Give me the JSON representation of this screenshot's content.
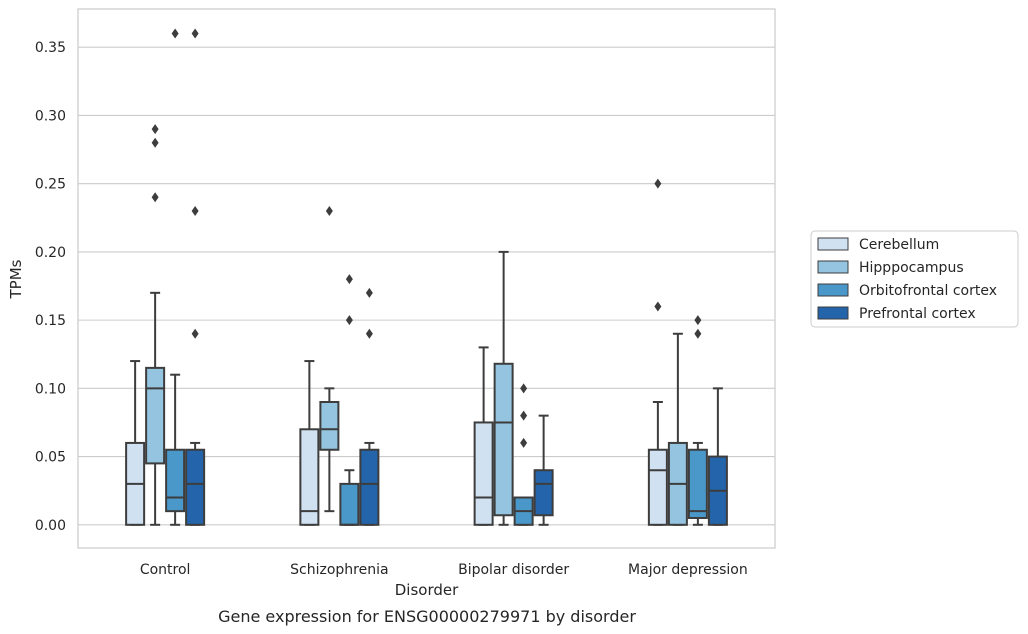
{
  "chart_data": {
    "type": "box",
    "caption": "Gene expression for ENSG00000279971 by disorder",
    "xlabel": "Disorder",
    "ylabel": "TPMs",
    "ylim": [
      -0.017,
      0.378
    ],
    "yticks": [
      "0.00",
      "0.05",
      "0.10",
      "0.15",
      "0.20",
      "0.25",
      "0.30",
      "0.35"
    ],
    "grid": true,
    "legend_position": "outside-right",
    "categories": [
      "Control",
      "Schizophrenia",
      "Bipolar disorder",
      "Major depression"
    ],
    "series": [
      {
        "name": "Cerebellum",
        "color": "#d0e1f2",
        "boxes": [
          {
            "whislo": 0.0,
            "q1": 0.0,
            "med": 0.03,
            "q3": 0.06,
            "whishi": 0.12,
            "fliers": []
          },
          {
            "whislo": 0.0,
            "q1": 0.0,
            "med": 0.01,
            "q3": 0.07,
            "whishi": 0.12,
            "fliers": []
          },
          {
            "whislo": 0.0,
            "q1": 0.0,
            "med": 0.02,
            "q3": 0.075,
            "whishi": 0.13,
            "fliers": []
          },
          {
            "whislo": 0.0,
            "q1": 0.0,
            "med": 0.04,
            "q3": 0.055,
            "whishi": 0.09,
            "fliers": [
              0.16,
              0.25
            ]
          }
        ]
      },
      {
        "name": "Hipppocampus",
        "color": "#94c4df",
        "boxes": [
          {
            "whislo": 0.0,
            "q1": 0.045,
            "med": 0.1,
            "q3": 0.115,
            "whishi": 0.17,
            "fliers": [
              0.24,
              0.28,
              0.29
            ]
          },
          {
            "whislo": 0.01,
            "q1": 0.055,
            "med": 0.07,
            "q3": 0.09,
            "whishi": 0.1,
            "fliers": [
              0.23
            ]
          },
          {
            "whislo": 0.0,
            "q1": 0.007,
            "med": 0.075,
            "q3": 0.118,
            "whishi": 0.2,
            "fliers": []
          },
          {
            "whislo": 0.0,
            "q1": 0.0,
            "med": 0.03,
            "q3": 0.06,
            "whishi": 0.14,
            "fliers": []
          }
        ]
      },
      {
        "name": "Orbitofrontal cortex",
        "color": "#4a98c9",
        "boxes": [
          {
            "whislo": 0.0,
            "q1": 0.01,
            "med": 0.02,
            "q3": 0.055,
            "whishi": 0.11,
            "fliers": [
              0.36
            ]
          },
          {
            "whislo": 0.0,
            "q1": 0.0,
            "med": 0.0,
            "q3": 0.03,
            "whishi": 0.04,
            "fliers": [
              0.15,
              0.18
            ]
          },
          {
            "whislo": 0.0,
            "q1": 0.0,
            "med": 0.01,
            "q3": 0.02,
            "whishi": 0.02,
            "fliers": [
              0.06,
              0.08,
              0.1
            ]
          },
          {
            "whislo": 0.0,
            "q1": 0.005,
            "med": 0.01,
            "q3": 0.055,
            "whishi": 0.06,
            "fliers": [
              0.14,
              0.15
            ]
          }
        ]
      },
      {
        "name": "Prefrontal cortex",
        "color": "#2464ab",
        "boxes": [
          {
            "whislo": 0.0,
            "q1": 0.0,
            "med": 0.03,
            "q3": 0.055,
            "whishi": 0.06,
            "fliers": [
              0.14,
              0.23,
              0.36
            ]
          },
          {
            "whislo": 0.0,
            "q1": 0.0,
            "med": 0.03,
            "q3": 0.055,
            "whishi": 0.06,
            "fliers": [
              0.14,
              0.17
            ]
          },
          {
            "whislo": 0.0,
            "q1": 0.007,
            "med": 0.03,
            "q3": 0.04,
            "whishi": 0.08,
            "fliers": []
          },
          {
            "whislo": 0.0,
            "q1": 0.0,
            "med": 0.025,
            "q3": 0.05,
            "whishi": 0.1,
            "fliers": []
          }
        ]
      }
    ]
  }
}
